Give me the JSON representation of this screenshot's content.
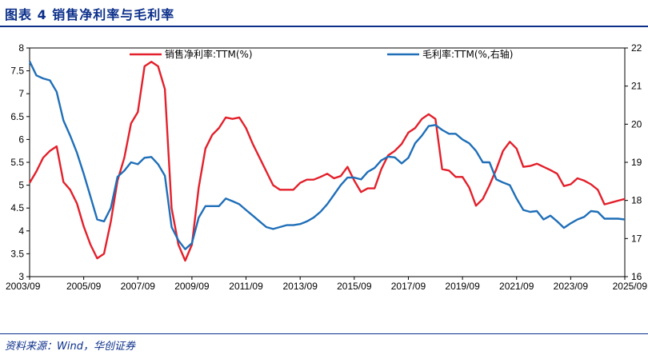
{
  "header": {
    "title": "图表 4   销售净利率与毛利率"
  },
  "footer": {
    "source": "资料来源：Wind，华创证券"
  },
  "colors": {
    "net_margin": "#e3202b",
    "gross_margin": "#1f6fb8",
    "title": "#0b2f8a"
  },
  "chart_data": {
    "type": "line",
    "title": "销售净利率与毛利率",
    "x_labels": [
      "2003/09",
      "2005/09",
      "2007/09",
      "2009/09",
      "2011/09",
      "2013/09",
      "2015/09",
      "2017/09",
      "2019/09",
      "2021/09",
      "2023/09",
      "2025/09"
    ],
    "x_range": [
      2003.75,
      2025.75
    ],
    "y_left": {
      "min": 3,
      "max": 8,
      "ticks": [
        "3",
        "3.5",
        "4",
        "4.5",
        "5",
        "5.5",
        "6",
        "6.5",
        "7",
        "7.5",
        "8"
      ]
    },
    "y_right": {
      "min": 16,
      "max": 22,
      "ticks": [
        "16",
        "17",
        "18",
        "19",
        "20",
        "21",
        "22"
      ]
    },
    "legend_position": "top",
    "series": [
      {
        "name": "销售净利率:TTM(%)",
        "axis": "left",
        "points": [
          [
            2003.75,
            5.05
          ],
          [
            2004.0,
            5.3
          ],
          [
            2004.25,
            5.6
          ],
          [
            2004.5,
            5.75
          ],
          [
            2004.75,
            5.85
          ],
          [
            2005.0,
            5.07
          ],
          [
            2005.25,
            4.9
          ],
          [
            2005.5,
            4.6
          ],
          [
            2005.75,
            4.1
          ],
          [
            2006.0,
            3.7
          ],
          [
            2006.25,
            3.4
          ],
          [
            2006.5,
            3.5
          ],
          [
            2006.75,
            4.2
          ],
          [
            2007.0,
            5.1
          ],
          [
            2007.25,
            5.6
          ],
          [
            2007.5,
            6.35
          ],
          [
            2007.75,
            6.6
          ],
          [
            2008.0,
            7.6
          ],
          [
            2008.25,
            7.7
          ],
          [
            2008.5,
            7.6
          ],
          [
            2008.75,
            7.1
          ],
          [
            2009.0,
            4.5
          ],
          [
            2009.25,
            3.7
          ],
          [
            2009.5,
            3.35
          ],
          [
            2009.75,
            3.7
          ],
          [
            2010.0,
            4.95
          ],
          [
            2010.25,
            5.8
          ],
          [
            2010.5,
            6.1
          ],
          [
            2010.75,
            6.25
          ],
          [
            2011.0,
            6.48
          ],
          [
            2011.25,
            6.45
          ],
          [
            2011.5,
            6.48
          ],
          [
            2011.75,
            6.25
          ],
          [
            2012.0,
            5.9
          ],
          [
            2012.25,
            5.6
          ],
          [
            2012.5,
            5.3
          ],
          [
            2012.75,
            5.0
          ],
          [
            2013.0,
            4.9
          ],
          [
            2013.25,
            4.9
          ],
          [
            2013.5,
            4.9
          ],
          [
            2013.75,
            5.05
          ],
          [
            2014.0,
            5.12
          ],
          [
            2014.25,
            5.12
          ],
          [
            2014.5,
            5.18
          ],
          [
            2014.75,
            5.25
          ],
          [
            2015.0,
            5.15
          ],
          [
            2015.25,
            5.2
          ],
          [
            2015.5,
            5.4
          ],
          [
            2015.75,
            5.1
          ],
          [
            2016.0,
            4.85
          ],
          [
            2016.25,
            4.93
          ],
          [
            2016.5,
            4.93
          ],
          [
            2016.75,
            5.35
          ],
          [
            2017.0,
            5.65
          ],
          [
            2017.25,
            5.75
          ],
          [
            2017.5,
            5.9
          ],
          [
            2017.75,
            6.15
          ],
          [
            2018.0,
            6.25
          ],
          [
            2018.25,
            6.45
          ],
          [
            2018.5,
            6.55
          ],
          [
            2018.75,
            6.45
          ],
          [
            2019.0,
            5.35
          ],
          [
            2019.25,
            5.32
          ],
          [
            2019.5,
            5.18
          ],
          [
            2019.75,
            5.18
          ],
          [
            2020.0,
            4.95
          ],
          [
            2020.25,
            4.55
          ],
          [
            2020.5,
            4.7
          ],
          [
            2020.75,
            5.0
          ],
          [
            2021.0,
            5.35
          ],
          [
            2021.25,
            5.75
          ],
          [
            2021.5,
            5.95
          ],
          [
            2021.75,
            5.8
          ],
          [
            2022.0,
            5.4
          ],
          [
            2022.25,
            5.42
          ],
          [
            2022.5,
            5.47
          ],
          [
            2022.75,
            5.4
          ],
          [
            2023.0,
            5.33
          ],
          [
            2023.25,
            5.25
          ],
          [
            2023.5,
            4.98
          ],
          [
            2023.75,
            5.02
          ],
          [
            2024.0,
            5.15
          ],
          [
            2024.25,
            5.1
          ],
          [
            2024.5,
            5.02
          ],
          [
            2024.75,
            4.9
          ],
          [
            2025.0,
            4.58
          ],
          [
            2025.25,
            4.62
          ],
          [
            2025.5,
            4.66
          ],
          [
            2025.75,
            4.7
          ]
        ]
      },
      {
        "name": "毛利率:TTM(%,右轴)",
        "axis": "right",
        "points": [
          [
            2003.75,
            21.65
          ],
          [
            2004.0,
            21.28
          ],
          [
            2004.25,
            21.2
          ],
          [
            2004.5,
            21.15
          ],
          [
            2004.75,
            20.85
          ],
          [
            2005.0,
            20.1
          ],
          [
            2005.25,
            19.7
          ],
          [
            2005.5,
            19.25
          ],
          [
            2005.75,
            18.7
          ],
          [
            2006.0,
            18.1
          ],
          [
            2006.25,
            17.5
          ],
          [
            2006.5,
            17.45
          ],
          [
            2006.75,
            17.8
          ],
          [
            2007.0,
            18.62
          ],
          [
            2007.25,
            18.78
          ],
          [
            2007.5,
            19.0
          ],
          [
            2007.75,
            18.95
          ],
          [
            2008.0,
            19.12
          ],
          [
            2008.25,
            19.14
          ],
          [
            2008.5,
            18.95
          ],
          [
            2008.75,
            18.65
          ],
          [
            2009.0,
            17.3
          ],
          [
            2009.25,
            16.95
          ],
          [
            2009.5,
            16.72
          ],
          [
            2009.75,
            16.88
          ],
          [
            2010.0,
            17.55
          ],
          [
            2010.25,
            17.85
          ],
          [
            2010.5,
            17.85
          ],
          [
            2010.75,
            17.85
          ],
          [
            2011.0,
            18.05
          ],
          [
            2011.25,
            17.98
          ],
          [
            2011.5,
            17.9
          ],
          [
            2011.75,
            17.75
          ],
          [
            2012.0,
            17.6
          ],
          [
            2012.25,
            17.45
          ],
          [
            2012.5,
            17.3
          ],
          [
            2012.75,
            17.25
          ],
          [
            2013.0,
            17.3
          ],
          [
            2013.25,
            17.35
          ],
          [
            2013.5,
            17.35
          ],
          [
            2013.75,
            17.38
          ],
          [
            2014.0,
            17.45
          ],
          [
            2014.25,
            17.55
          ],
          [
            2014.5,
            17.7
          ],
          [
            2014.75,
            17.9
          ],
          [
            2015.0,
            18.15
          ],
          [
            2015.25,
            18.4
          ],
          [
            2015.5,
            18.6
          ],
          [
            2015.75,
            18.6
          ],
          [
            2016.0,
            18.55
          ],
          [
            2016.25,
            18.75
          ],
          [
            2016.5,
            18.85
          ],
          [
            2016.75,
            19.05
          ],
          [
            2017.0,
            19.15
          ],
          [
            2017.25,
            19.13
          ],
          [
            2017.5,
            18.97
          ],
          [
            2017.75,
            19.12
          ],
          [
            2018.0,
            19.5
          ],
          [
            2018.25,
            19.7
          ],
          [
            2018.5,
            19.95
          ],
          [
            2018.75,
            19.98
          ],
          [
            2019.0,
            19.85
          ],
          [
            2019.25,
            19.75
          ],
          [
            2019.5,
            19.75
          ],
          [
            2019.75,
            19.6
          ],
          [
            2020.0,
            19.5
          ],
          [
            2020.25,
            19.3
          ],
          [
            2020.5,
            19.0
          ],
          [
            2020.75,
            19.0
          ],
          [
            2021.0,
            18.55
          ],
          [
            2021.25,
            18.47
          ],
          [
            2021.5,
            18.4
          ],
          [
            2021.75,
            18.05
          ],
          [
            2022.0,
            17.75
          ],
          [
            2022.25,
            17.7
          ],
          [
            2022.5,
            17.72
          ],
          [
            2022.75,
            17.5
          ],
          [
            2023.0,
            17.6
          ],
          [
            2023.25,
            17.45
          ],
          [
            2023.5,
            17.28
          ],
          [
            2023.75,
            17.4
          ],
          [
            2024.0,
            17.5
          ],
          [
            2024.25,
            17.57
          ],
          [
            2024.5,
            17.72
          ],
          [
            2024.75,
            17.7
          ],
          [
            2025.0,
            17.52
          ],
          [
            2025.25,
            17.52
          ],
          [
            2025.5,
            17.52
          ],
          [
            2025.75,
            17.5
          ]
        ]
      }
    ]
  }
}
